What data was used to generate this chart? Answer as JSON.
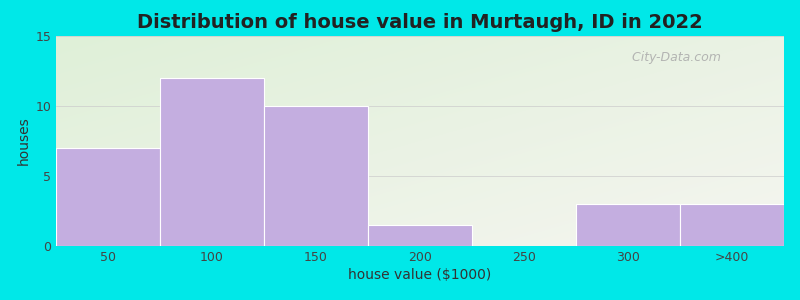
{
  "title": "Distribution of house value in Murtaugh, ID in 2022",
  "xlabel": "house value ($1000)",
  "ylabel": "houses",
  "bar_labels": [
    "50",
    "100",
    "150",
    "200",
    "250",
    "300",
    ">400"
  ],
  "bar_heights": [
    7,
    12,
    10,
    1.5,
    0,
    3,
    3
  ],
  "bar_color": "#c4aee0",
  "ylim": [
    0,
    15
  ],
  "yticks": [
    0,
    5,
    10,
    15
  ],
  "bg_color": "#00e8e8",
  "gradient_topleft": "#dff0d8",
  "gradient_bottomright": "#f5f5f0",
  "watermark": "  City-Data.com",
  "title_fontsize": 14,
  "label_fontsize": 10,
  "tick_fontsize": 9
}
